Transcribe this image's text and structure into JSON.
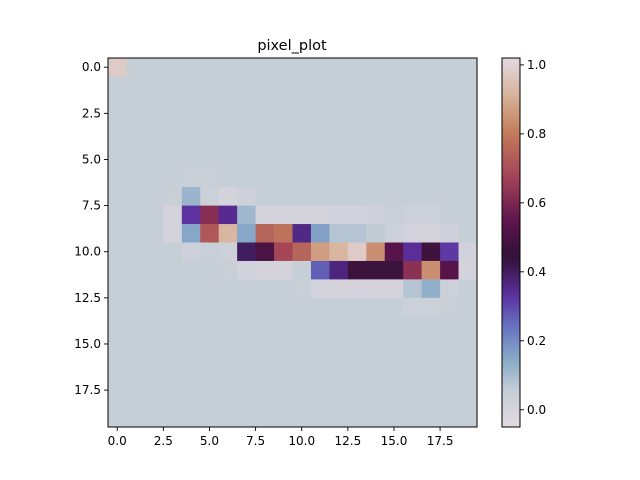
{
  "chart_data": {
    "type": "heatmap",
    "title": "pixel_plot",
    "xlabel": "",
    "ylabel": "",
    "rows": 20,
    "cols": 20,
    "origin": "upper",
    "x_ticks": [
      0.0,
      2.5,
      5.0,
      7.5,
      10.0,
      12.5,
      15.0,
      17.5
    ],
    "x_tick_labels": [
      "0.0",
      "2.5",
      "5.0",
      "7.5",
      "10.0",
      "12.5",
      "15.0",
      "17.5"
    ],
    "y_ticks": [
      0.0,
      2.5,
      5.0,
      7.5,
      10.0,
      12.5,
      15.0,
      17.5
    ],
    "y_tick_labels": [
      "0.0",
      "2.5",
      "5.0",
      "7.5",
      "10.0",
      "12.5",
      "15.0",
      "17.5"
    ],
    "colorbar": {
      "colormap": "twilight",
      "vmin": -0.05,
      "vmax": 1.02,
      "ticks": [
        0.0,
        0.2,
        0.4,
        0.6,
        0.8,
        1.0
      ],
      "tick_labels": [
        "0.0",
        "0.2",
        "0.4",
        "0.6",
        "0.8",
        "1.0"
      ]
    },
    "background_value": 0.05,
    "values": [
      [
        0.98,
        0.05,
        0.05,
        0.05,
        0.05,
        0.05,
        0.05,
        0.05,
        0.05,
        0.05,
        0.05,
        0.05,
        0.05,
        0.05,
        0.05,
        0.05,
        0.05,
        0.05,
        0.05,
        0.05
      ],
      [
        0.05,
        0.05,
        0.05,
        0.05,
        0.05,
        0.05,
        0.05,
        0.05,
        0.05,
        0.05,
        0.05,
        0.05,
        0.05,
        0.05,
        0.05,
        0.05,
        0.05,
        0.05,
        0.05,
        0.05
      ],
      [
        0.05,
        0.05,
        0.05,
        0.05,
        0.05,
        0.05,
        0.05,
        0.05,
        0.05,
        0.05,
        0.05,
        0.05,
        0.05,
        0.05,
        0.05,
        0.05,
        0.05,
        0.05,
        0.05,
        0.05
      ],
      [
        0.05,
        0.05,
        0.05,
        0.05,
        0.05,
        0.05,
        0.05,
        0.05,
        0.05,
        0.05,
        0.05,
        0.05,
        0.05,
        0.05,
        0.05,
        0.05,
        0.05,
        0.05,
        0.05,
        0.05
      ],
      [
        0.05,
        0.05,
        0.05,
        0.05,
        0.05,
        0.05,
        0.05,
        0.05,
        0.05,
        0.05,
        0.05,
        0.05,
        0.05,
        0.05,
        0.05,
        0.05,
        0.05,
        0.05,
        0.05,
        0.05
      ],
      [
        0.05,
        0.05,
        0.05,
        0.05,
        0.05,
        0.05,
        0.05,
        0.05,
        0.05,
        0.05,
        0.05,
        0.05,
        0.05,
        0.05,
        0.05,
        0.05,
        0.05,
        0.05,
        0.05,
        0.05
      ],
      [
        0.05,
        0.05,
        0.05,
        0.05,
        0.04,
        0.04,
        0.05,
        0.05,
        0.05,
        0.05,
        0.05,
        0.05,
        0.05,
        0.05,
        0.05,
        0.05,
        0.05,
        0.05,
        0.05,
        0.05
      ],
      [
        0.05,
        0.05,
        0.05,
        0.04,
        0.12,
        0.03,
        0.0,
        0.02,
        0.05,
        0.05,
        0.05,
        0.05,
        0.05,
        0.05,
        0.05,
        0.05,
        0.05,
        0.05,
        0.05,
        0.05
      ],
      [
        0.05,
        0.05,
        0.05,
        0.0,
        0.33,
        0.62,
        0.35,
        0.11,
        0.0,
        0.0,
        0.0,
        0.0,
        0.01,
        0.01,
        0.02,
        0.04,
        0.03,
        0.03,
        0.05,
        0.05
      ],
      [
        0.05,
        0.05,
        0.05,
        0.0,
        0.15,
        0.72,
        0.92,
        0.15,
        0.75,
        0.78,
        0.36,
        0.16,
        0.08,
        0.08,
        0.06,
        0.03,
        0.0,
        0.0,
        0.02,
        0.05
      ],
      [
        0.05,
        0.05,
        0.05,
        0.05,
        0.02,
        0.04,
        0.03,
        0.4,
        0.5,
        0.68,
        0.75,
        0.87,
        0.92,
        0.98,
        0.84,
        0.53,
        0.34,
        0.48,
        0.32,
        0.01
      ],
      [
        0.05,
        0.05,
        0.05,
        0.05,
        0.05,
        0.05,
        0.04,
        0.01,
        0.0,
        0.0,
        0.05,
        0.27,
        0.37,
        0.47,
        0.47,
        0.47,
        0.63,
        0.84,
        0.53,
        0.0
      ],
      [
        0.05,
        0.05,
        0.05,
        0.05,
        0.05,
        0.05,
        0.05,
        0.05,
        0.05,
        0.05,
        0.04,
        0.0,
        0.0,
        0.0,
        0.0,
        0.0,
        0.08,
        0.13,
        0.03,
        0.05
      ],
      [
        0.05,
        0.05,
        0.05,
        0.05,
        0.05,
        0.05,
        0.05,
        0.05,
        0.05,
        0.05,
        0.05,
        0.05,
        0.05,
        0.05,
        0.05,
        0.05,
        0.03,
        0.03,
        0.04,
        0.05
      ],
      [
        0.05,
        0.05,
        0.05,
        0.05,
        0.05,
        0.05,
        0.05,
        0.05,
        0.05,
        0.05,
        0.05,
        0.05,
        0.05,
        0.05,
        0.05,
        0.05,
        0.05,
        0.05,
        0.05,
        0.05
      ],
      [
        0.05,
        0.05,
        0.05,
        0.05,
        0.05,
        0.05,
        0.05,
        0.05,
        0.05,
        0.05,
        0.05,
        0.05,
        0.05,
        0.05,
        0.05,
        0.05,
        0.05,
        0.05,
        0.05,
        0.05
      ],
      [
        0.05,
        0.05,
        0.05,
        0.05,
        0.05,
        0.05,
        0.05,
        0.05,
        0.05,
        0.05,
        0.05,
        0.05,
        0.05,
        0.05,
        0.05,
        0.05,
        0.05,
        0.05,
        0.05,
        0.05
      ],
      [
        0.05,
        0.05,
        0.05,
        0.05,
        0.05,
        0.05,
        0.05,
        0.05,
        0.05,
        0.05,
        0.05,
        0.05,
        0.05,
        0.05,
        0.05,
        0.05,
        0.05,
        0.05,
        0.05,
        0.05
      ],
      [
        0.05,
        0.05,
        0.05,
        0.05,
        0.05,
        0.05,
        0.05,
        0.05,
        0.05,
        0.05,
        0.05,
        0.05,
        0.05,
        0.05,
        0.05,
        0.05,
        0.05,
        0.05,
        0.05,
        0.05
      ],
      [
        0.05,
        0.05,
        0.05,
        0.05,
        0.05,
        0.05,
        0.05,
        0.05,
        0.05,
        0.05,
        0.05,
        0.05,
        0.05,
        0.05,
        0.05,
        0.05,
        0.05,
        0.05,
        0.05,
        0.05
      ]
    ]
  }
}
